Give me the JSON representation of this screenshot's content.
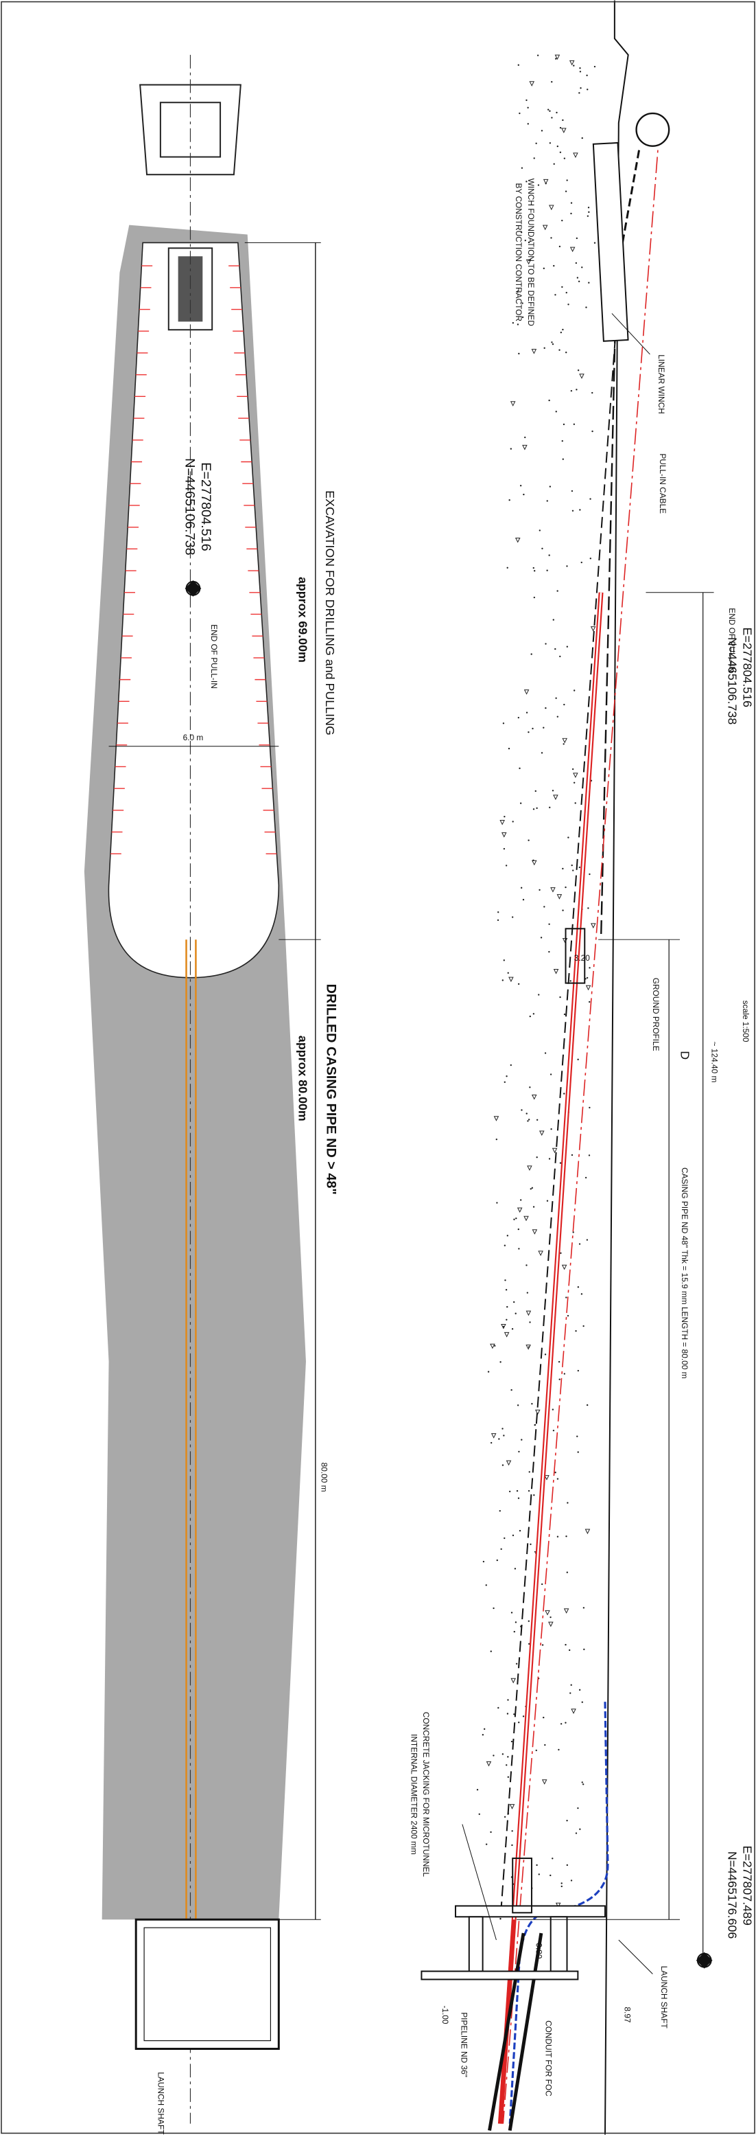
{
  "plan_view": {
    "excavation_label": "EXCAVATION FOR DRILLING and PULLING",
    "excavation_length": "approx 69.00m",
    "end_e": "E=277804.516",
    "end_n": "N=4465106.738",
    "end_label": "END OF PULL-IN",
    "width": "6.0 m",
    "casing_label": "DRILLED CASING PIPE ND > 48\"",
    "casing_length": "approx 80.00m",
    "casing_dim": "80.00 m",
    "shaft_label": "LAUNCH SHAFT"
  },
  "profile_view": {
    "winch_note_1": "WINCH FOUNDATION TO BE DEFINED",
    "winch_note_2": "BY CONSTRUCTION CONTRACTOR",
    "winch_label": "LINEAR WINCH",
    "cable_label": "PULL-IN CABLE",
    "end_label": "END OF PULL-IN",
    "end_e": "E=277804.516",
    "end_n": "N=4465106.738",
    "cover_top": "3.20",
    "ground_label": "GROUND PROFILE",
    "dim_d": "D",
    "scale": "scale 1:500",
    "total_length": "~ 124.40 m",
    "casing_spec": "CASING PIPE ND 48\" Thk = 15.9 mm LENGTH = 80.00 m",
    "jacking_1": "CONCRETE JACKING FOR MICROTUNNEL",
    "jacking_2": "INTERNAL DIAMETER 2400 mm",
    "cover_bottom": "0.80",
    "start_e": "E=277807.489",
    "start_n": "N=4465176.606",
    "shaft_label": "LAUNCH SHAFT",
    "shaft_level": "8.97",
    "bottom_level": "-1.00",
    "pipeline_label": "PIPELINE ND 36\"",
    "conduit_label": "CONDUIT FOR FOC"
  }
}
